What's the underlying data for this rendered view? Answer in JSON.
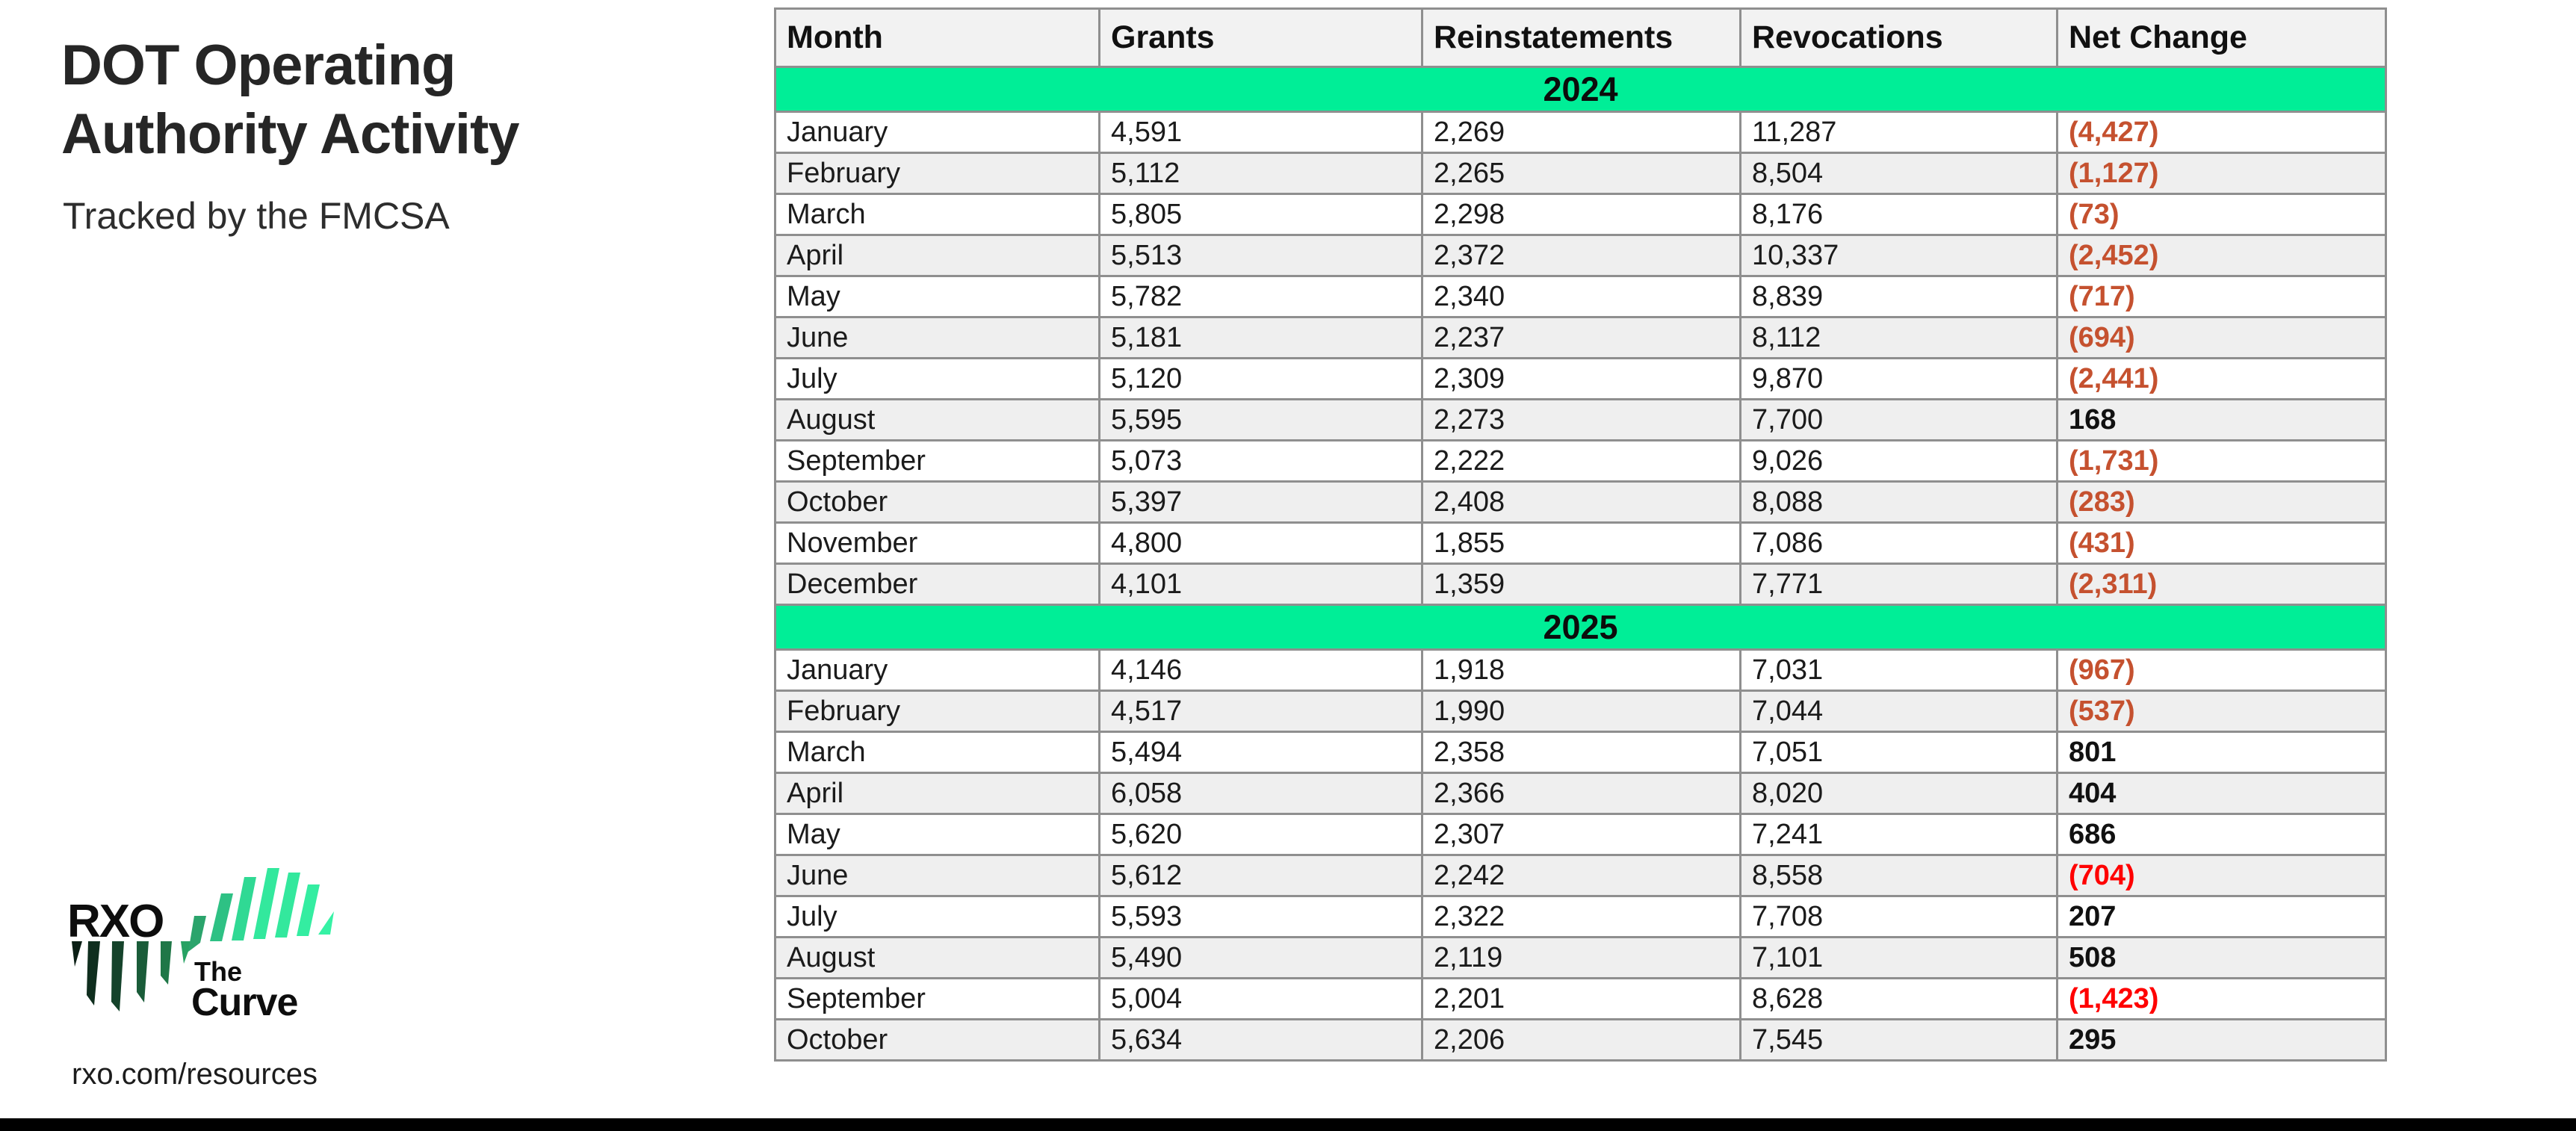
{
  "header": {
    "title_line1": "DOT Operating",
    "title_line2": "Authority Activity",
    "subtitle": "Tracked by the FMCSA"
  },
  "logo": {
    "brand": "RXO",
    "tagline_line1": "The",
    "tagline_line2": "Curve"
  },
  "footer": {
    "url": "rxo.com/resources"
  },
  "colors": {
    "accent_green": "#00EE97",
    "negative_red": "#C5512F",
    "alert_red": "#FF0000",
    "positive_black": "#111111",
    "stripe_gray": "#EFEFEF",
    "header_gray": "#F2F2F2"
  },
  "table": {
    "headers": [
      "Month",
      "Grants",
      "Reinstatements",
      "Revocations",
      "Net Change"
    ],
    "sections": [
      {
        "year": "2024",
        "rows": [
          {
            "month": "January",
            "grants": "4,591",
            "reinstatements": "2,269",
            "revocations": "11,287",
            "net_change": "(4,427)",
            "net_tone": "neg"
          },
          {
            "month": "February",
            "grants": "5,112",
            "reinstatements": "2,265",
            "revocations": "8,504",
            "net_change": "(1,127)",
            "net_tone": "neg"
          },
          {
            "month": "March",
            "grants": "5,805",
            "reinstatements": "2,298",
            "revocations": "8,176",
            "net_change": "(73)",
            "net_tone": "neg"
          },
          {
            "month": "April",
            "grants": "5,513",
            "reinstatements": "2,372",
            "revocations": "10,337",
            "net_change": "(2,452)",
            "net_tone": "neg"
          },
          {
            "month": "May",
            "grants": "5,782",
            "reinstatements": "2,340",
            "revocations": "8,839",
            "net_change": "(717)",
            "net_tone": "neg"
          },
          {
            "month": "June",
            "grants": "5,181",
            "reinstatements": "2,237",
            "revocations": "8,112",
            "net_change": "(694)",
            "net_tone": "neg"
          },
          {
            "month": "July",
            "grants": "5,120",
            "reinstatements": "2,309",
            "revocations": "9,870",
            "net_change": "(2,441)",
            "net_tone": "neg"
          },
          {
            "month": "August",
            "grants": "5,595",
            "reinstatements": "2,273",
            "revocations": "7,700",
            "net_change": "168",
            "net_tone": "pos"
          },
          {
            "month": "September",
            "grants": "5,073",
            "reinstatements": "2,222",
            "revocations": "9,026",
            "net_change": "(1,731)",
            "net_tone": "neg"
          },
          {
            "month": "October",
            "grants": "5,397",
            "reinstatements": "2,408",
            "revocations": "8,088",
            "net_change": "(283)",
            "net_tone": "neg"
          },
          {
            "month": "November",
            "grants": "4,800",
            "reinstatements": "1,855",
            "revocations": "7,086",
            "net_change": "(431)",
            "net_tone": "neg"
          },
          {
            "month": "December",
            "grants": "4,101",
            "reinstatements": "1,359",
            "revocations": "7,771",
            "net_change": "(2,311)",
            "net_tone": "neg"
          }
        ]
      },
      {
        "year": "2025",
        "rows": [
          {
            "month": "January",
            "grants": "4,146",
            "reinstatements": "1,918",
            "revocations": "7,031",
            "net_change": "(967)",
            "net_tone": "neg"
          },
          {
            "month": "February",
            "grants": "4,517",
            "reinstatements": "1,990",
            "revocations": "7,044",
            "net_change": "(537)",
            "net_tone": "neg"
          },
          {
            "month": "March",
            "grants": "5,494",
            "reinstatements": "2,358",
            "revocations": "7,051",
            "net_change": "801",
            "net_tone": "pos"
          },
          {
            "month": "April",
            "grants": "6,058",
            "reinstatements": "2,366",
            "revocations": "8,020",
            "net_change": "404",
            "net_tone": "pos"
          },
          {
            "month": "May",
            "grants": "5,620",
            "reinstatements": "2,307",
            "revocations": "7,241",
            "net_change": "686",
            "net_tone": "pos"
          },
          {
            "month": "June",
            "grants": "5,612",
            "reinstatements": "2,242",
            "revocations": "8,558",
            "net_change": "(704)",
            "net_tone": "alert"
          },
          {
            "month": "July",
            "grants": "5,593",
            "reinstatements": "2,322",
            "revocations": "7,708",
            "net_change": "207",
            "net_tone": "pos"
          },
          {
            "month": "August",
            "grants": "5,490",
            "reinstatements": "2,119",
            "revocations": "7,101",
            "net_change": "508",
            "net_tone": "pos"
          },
          {
            "month": "September",
            "grants": "5,004",
            "reinstatements": "2,201",
            "revocations": "8,628",
            "net_change": "(1,423)",
            "net_tone": "alert"
          },
          {
            "month": "October",
            "grants": "5,634",
            "reinstatements": "2,206",
            "revocations": "7,545",
            "net_change": "295",
            "net_tone": "pos"
          }
        ]
      }
    ]
  },
  "chart_data": {
    "type": "table",
    "title": "DOT Operating Authority Activity",
    "subtitle": "Tracked by the FMCSA",
    "columns": [
      "Month",
      "Grants",
      "Reinstatements",
      "Revocations",
      "Net Change"
    ],
    "sections": [
      {
        "year": 2024,
        "rows": [
          [
            "January",
            4591,
            2269,
            11287,
            -4427
          ],
          [
            "February",
            5112,
            2265,
            8504,
            -1127
          ],
          [
            "March",
            5805,
            2298,
            8176,
            -73
          ],
          [
            "April",
            5513,
            2372,
            10337,
            -2452
          ],
          [
            "May",
            5782,
            2340,
            8839,
            -717
          ],
          [
            "June",
            5181,
            2237,
            8112,
            -694
          ],
          [
            "July",
            5120,
            2309,
            9870,
            -2441
          ],
          [
            "August",
            5595,
            2273,
            7700,
            168
          ],
          [
            "September",
            5073,
            2222,
            9026,
            -1731
          ],
          [
            "October",
            5397,
            2408,
            8088,
            -283
          ],
          [
            "November",
            4800,
            1855,
            7086,
            -431
          ],
          [
            "December",
            4101,
            1359,
            7771,
            -2311
          ]
        ]
      },
      {
        "year": 2025,
        "rows": [
          [
            "January",
            4146,
            1918,
            7031,
            -967
          ],
          [
            "February",
            4517,
            1990,
            7044,
            -537
          ],
          [
            "March",
            5494,
            2358,
            7051,
            801
          ],
          [
            "April",
            6058,
            2366,
            8020,
            404
          ],
          [
            "May",
            5620,
            2307,
            7241,
            686
          ],
          [
            "June",
            5612,
            2242,
            8558,
            -704
          ],
          [
            "July",
            5593,
            2322,
            7708,
            207
          ],
          [
            "August",
            5490,
            2119,
            7101,
            508
          ],
          [
            "September",
            5004,
            2201,
            8628,
            -1423
          ],
          [
            "October",
            5634,
            2206,
            7545,
            295
          ]
        ]
      }
    ]
  }
}
